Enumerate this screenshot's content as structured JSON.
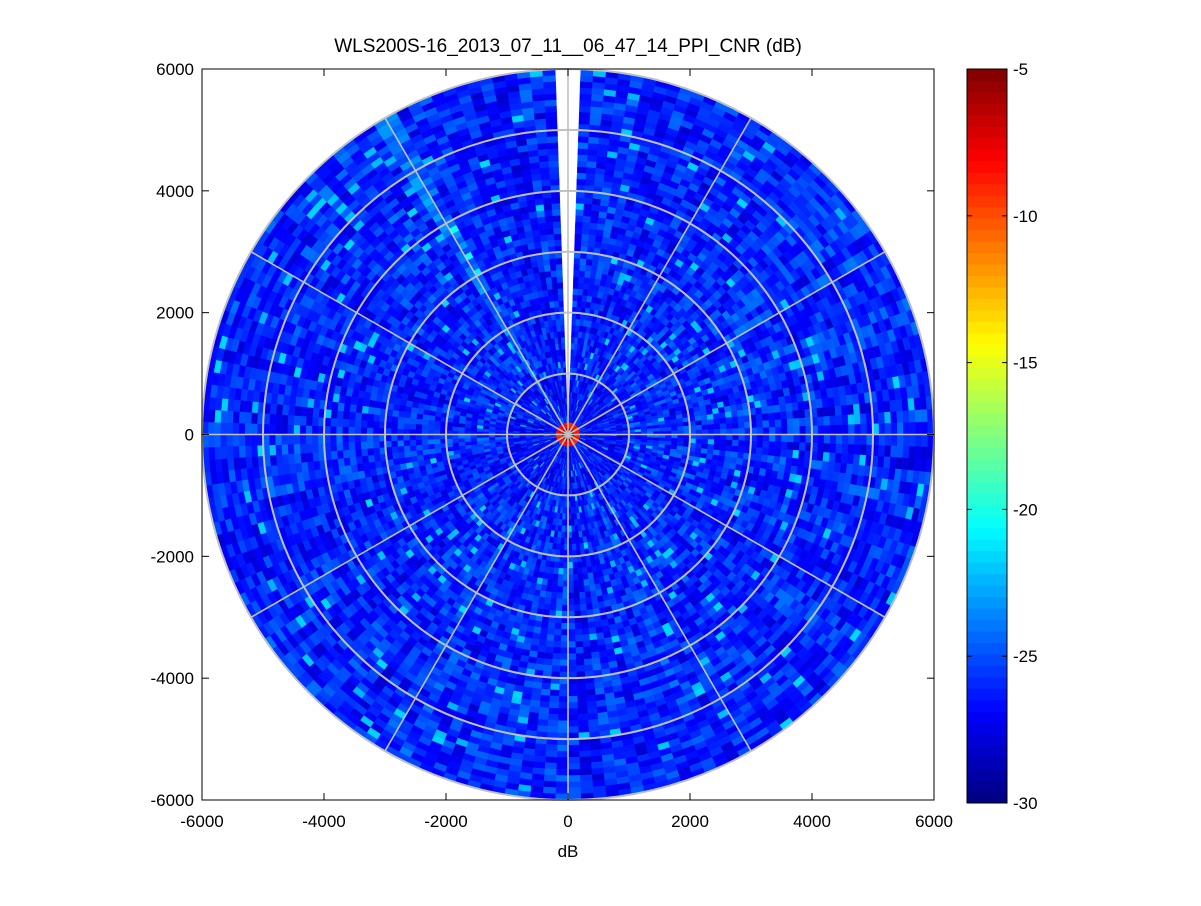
{
  "chart_data": {
    "type": "heatmap",
    "subtype": "polar PPI scan",
    "title": "WLS200S-16_2013_07_11__06_47_14_PPI_CNR (dB)",
    "xlabel": "dB",
    "ylabel": "",
    "xlim": [
      -6000,
      6000
    ],
    "ylim": [
      -6000,
      6000
    ],
    "x_ticks": [
      "-6000",
      "-4000",
      "-2000",
      "0",
      "2000",
      "4000",
      "6000"
    ],
    "y_ticks": [
      "6000",
      "4000",
      "2000",
      "0",
      "-2000",
      "-4000",
      "-6000"
    ],
    "colorbar": {
      "colormap": "jet",
      "range": [
        -30,
        -5
      ],
      "ticks": [
        "-5",
        "-10",
        "-15",
        "-20",
        "-25",
        "-30"
      ]
    },
    "polar_grid": {
      "range_rings": [
        1000,
        2000,
        3000,
        4000,
        5000,
        6000
      ],
      "spoke_angles_deg": [
        0,
        30,
        60,
        90,
        120,
        150,
        180,
        210,
        240,
        270,
        300,
        330
      ],
      "color": "#c0c0c0"
    },
    "field": {
      "max_range": 6000,
      "typical_cnr_db": -26,
      "variation_db": [
        -28.5,
        -21
      ],
      "near_center_peak_db": -5,
      "near_center_radius": 250,
      "no_data_sector_deg": [
        -2,
        2
      ]
    }
  }
}
